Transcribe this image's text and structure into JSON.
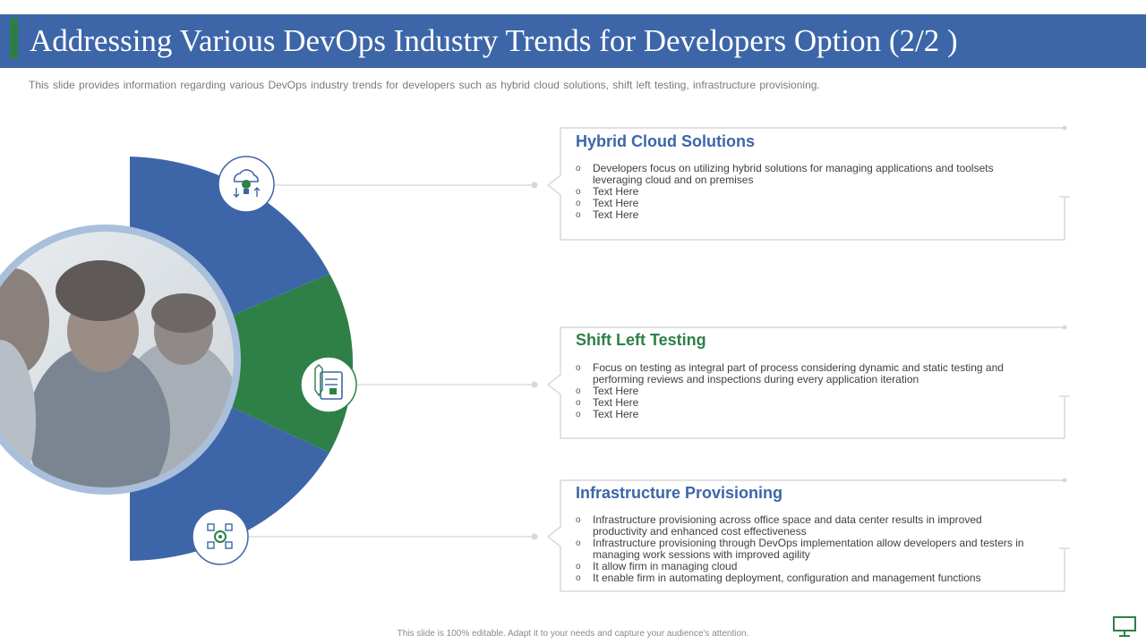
{
  "slide": {
    "title": "Addressing Various DevOps Industry Trends for Developers Option (2/2 )",
    "subtitle": "This slide provides  information  regarding  various  DevOps  industry trends for  developers  such as hybrid cloud solutions, shift left testing, infrastructure  provisioning.",
    "footer": "This slide is 100% editable. Adapt it to your needs and capture your audience's attention."
  },
  "colors": {
    "blue": "#3d66a8",
    "green": "#2e8046",
    "title_green_accent": "#2e7d46",
    "card_border": "#d9d9d9"
  },
  "cards": [
    {
      "title": "Hybrid Cloud Solutions",
      "title_color": "#3d66a8",
      "icon": "cloud-lightbulb-icon",
      "items": [
        "Developers focus on utilizing hybrid solutions for managing applications and toolsets leveraging cloud and on premises",
        "Text Here",
        "Text Here",
        "Text Here"
      ]
    },
    {
      "title": "Shift Left Testing",
      "title_color": "#2e8046",
      "icon": "testing-checklist-icon",
      "items": [
        "Focus on testing as integral part of process considering dynamic and static testing and performing reviews and inspections during every application iteration",
        "Text Here",
        "Text Here",
        "Text Here"
      ]
    },
    {
      "title": "Infrastructure Provisioning",
      "title_color": "#3d66a8",
      "icon": "infrastructure-network-icon",
      "items": [
        "Infrastructure provisioning across office space and data center results in improved productivity and enhanced cost effectiveness",
        "Infrastructure provisioning through DevOps implementation allow developers and testers in managing work sessions with improved agility",
        "It allow firm in managing cloud",
        "It enable firm in automating deployment, configuration and management functions"
      ]
    }
  ],
  "image": {
    "description_icon": "team-photo"
  }
}
